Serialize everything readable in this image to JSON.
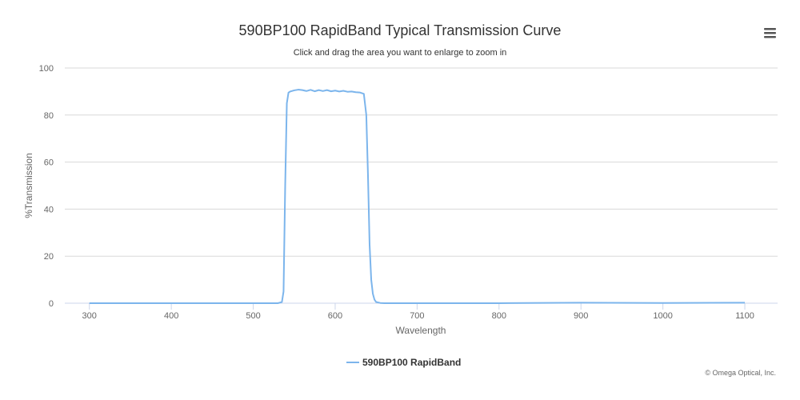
{
  "chart_data": {
    "type": "line",
    "title": "590BP100 RapidBand Typical Transmission Curve",
    "subtitle": "Click and drag the area you want to enlarge to zoom in",
    "xlabel": "Wavelength",
    "ylabel": "%Transmission",
    "xlim": [
      270,
      1140
    ],
    "ylim": [
      0,
      100
    ],
    "x_ticks": [
      300,
      400,
      500,
      600,
      700,
      800,
      900,
      1000,
      1100
    ],
    "y_ticks": [
      0,
      20,
      40,
      60,
      80,
      100
    ],
    "grid": true,
    "legend_position": "bottom-center",
    "series": [
      {
        "name": "590BP100 RapidBand",
        "color": "#7cb5ec",
        "x": [
          300,
          500,
          530,
          535,
          537,
          539,
          541,
          543,
          545,
          550,
          555,
          560,
          565,
          570,
          575,
          580,
          585,
          590,
          595,
          600,
          605,
          610,
          615,
          620,
          625,
          630,
          635,
          638,
          640,
          642,
          644,
          646,
          648,
          650,
          655,
          660,
          700,
          800,
          900,
          1000,
          1100
        ],
        "values": [
          0,
          0,
          0,
          0.5,
          5,
          50,
          85,
          89.5,
          90,
          90.5,
          90.8,
          90.6,
          90.2,
          90.7,
          90.1,
          90.6,
          90.2,
          90.6,
          90.1,
          90.4,
          90.0,
          90.3,
          89.9,
          90.0,
          89.7,
          89.6,
          89.0,
          80,
          55,
          25,
          10,
          4,
          1.5,
          0.5,
          0.1,
          0,
          0,
          0,
          0.2,
          0.1,
          0.2
        ]
      }
    ]
  },
  "menu": {
    "icon": "hamburger-menu-icon"
  },
  "credits": "© Omega Optical, Inc."
}
